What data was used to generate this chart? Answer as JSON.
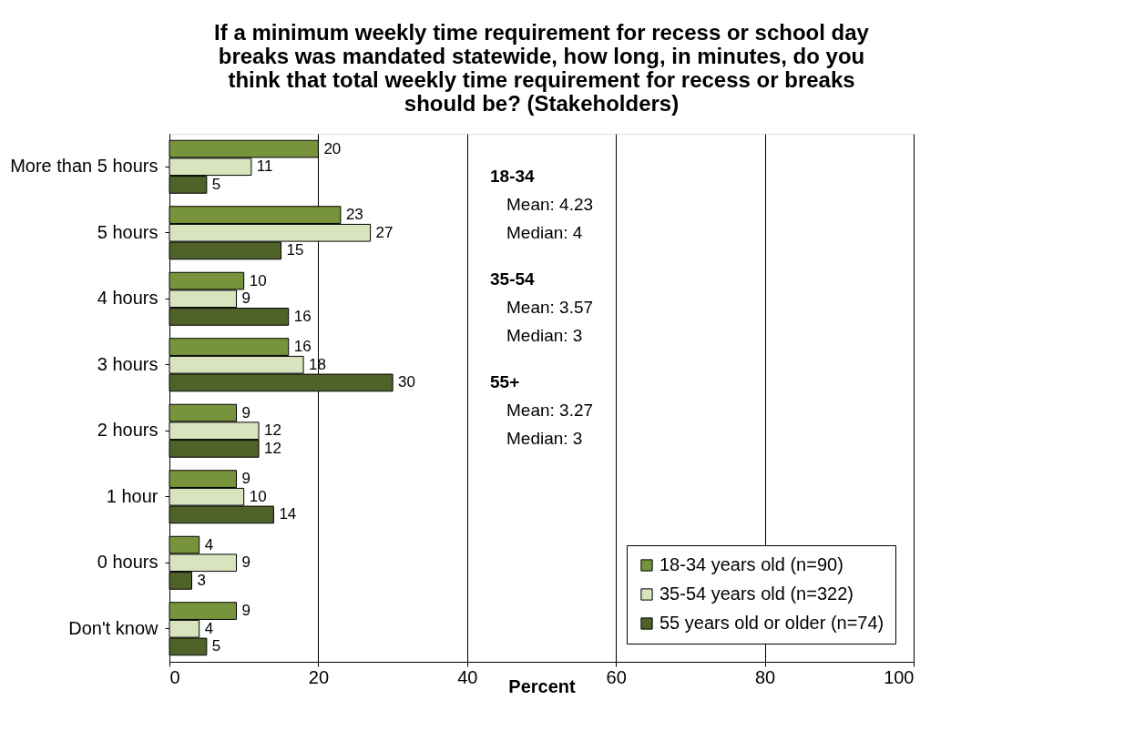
{
  "chart_data": {
    "type": "bar",
    "orientation": "horizontal",
    "title": "If a minimum weekly time requirement for recess or school day breaks was mandated statewide, how long, in minutes, do you think that total weekly time requirement for recess or breaks should be? (Stakeholders)",
    "xlabel": "Percent",
    "categories": [
      "More than 5 hours",
      "5 hours",
      "4 hours",
      "3 hours",
      "2 hours",
      "1 hour",
      "0 hours",
      "Don't know"
    ],
    "series": [
      {
        "name": "18-34 years old (n=90)",
        "color": "#77933c",
        "values": [
          20,
          23,
          10,
          16,
          9,
          9,
          4,
          9
        ]
      },
      {
        "name": "35-54 years old (n=322)",
        "color": "#d7e4bd",
        "values": [
          11,
          27,
          9,
          18,
          12,
          10,
          9,
          4
        ]
      },
      {
        "name": "55 years old or older (n=74)",
        "color": "#4f6228",
        "values": [
          5,
          15,
          16,
          30,
          12,
          14,
          3,
          5
        ]
      }
    ],
    "xlim": [
      0,
      100
    ],
    "xticks": [
      0,
      20,
      40,
      60,
      80,
      100
    ],
    "grid": "x",
    "legend": "bottom right",
    "data_labels": true,
    "annotations": [
      "18-34",
      "Mean: 4.23",
      "Median: 4",
      "35-54",
      "Mean: 3.57",
      "Median: 3",
      "55+",
      "Mean: 3.27",
      "Median: 3"
    ]
  }
}
